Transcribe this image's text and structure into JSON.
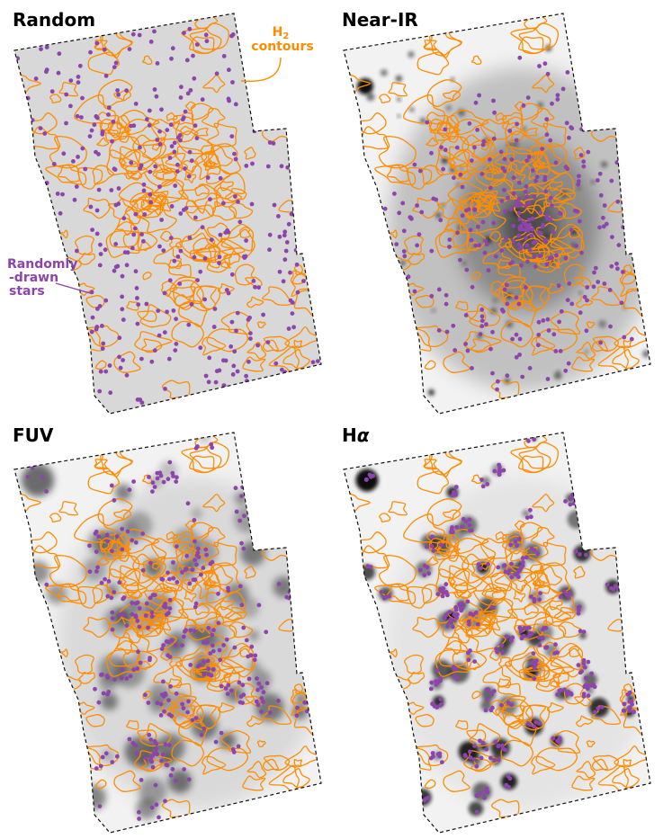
{
  "panels": [
    {
      "title": "Random",
      "title_sub": "",
      "background": "flat",
      "star_mode": "random"
    },
    {
      "title": "Near-IR",
      "title_sub": "",
      "background": "nir",
      "star_mode": "center"
    },
    {
      "title": "FUV",
      "title_sub": "",
      "background": "fuv",
      "star_mode": "clumps"
    },
    {
      "title": "H",
      "title_sub": "α",
      "background": "halpha",
      "star_mode": "clumps-tight"
    }
  ],
  "annotations": {
    "contours_line1": "H",
    "contours_line1_sub": "2",
    "contours_line2": "contours",
    "stars_line1": "Randomly",
    "stars_line2": "-drawn",
    "stars_line3": "stars"
  },
  "colors": {
    "contour": "#ff8c00",
    "star": "#8e44ad",
    "footprint_background": "#d8d8d8",
    "outline": "#111111"
  }
}
